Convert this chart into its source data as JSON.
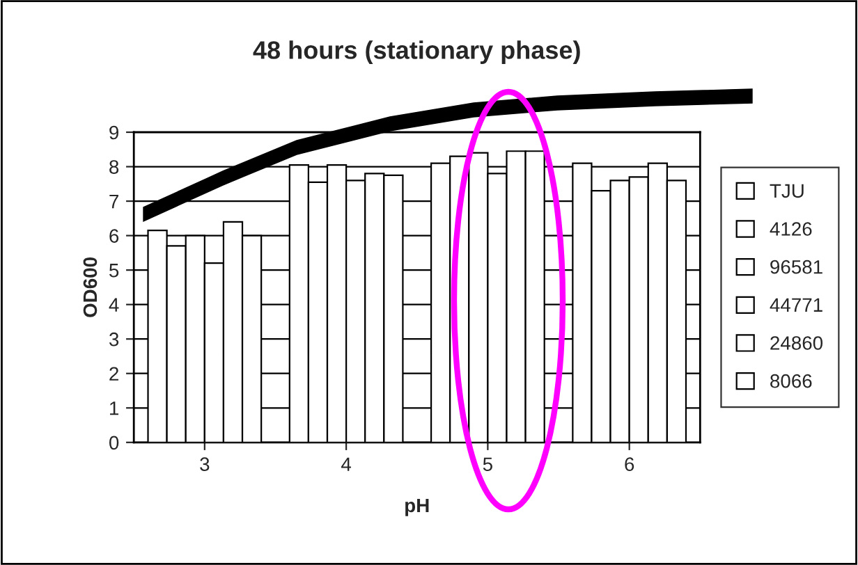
{
  "chart_data": {
    "type": "bar",
    "title": "48 hours (stationary phase)",
    "xlabel": "pH",
    "ylabel": "OD600",
    "categories": [
      "3",
      "4",
      "5",
      "6"
    ],
    "series": [
      {
        "name": "TJU",
        "color": "#ffffff",
        "values": [
          6.15,
          8.05,
          8.1,
          8.1
        ]
      },
      {
        "name": "4126",
        "color": "#ffffff",
        "values": [
          5.7,
          7.55,
          8.3,
          7.3
        ]
      },
      {
        "name": "96581",
        "color": "#ffffff",
        "values": [
          6.0,
          8.05,
          8.4,
          7.6
        ]
      },
      {
        "name": "44771",
        "color": "#ffffff",
        "values": [
          5.2,
          7.6,
          7.8,
          7.7
        ]
      },
      {
        "name": "24860",
        "color": "#ffffff",
        "values": [
          6.4,
          7.8,
          8.45,
          8.1
        ]
      },
      {
        "name": "8066",
        "color": "#ffffff",
        "values": [
          6.0,
          7.75,
          8.45,
          7.6
        ]
      }
    ],
    "ylim": [
      0,
      9
    ],
    "yticks": [
      0,
      1,
      2,
      3,
      4,
      5,
      6,
      7,
      8,
      9
    ],
    "grid": "y",
    "legend": "right"
  }
}
